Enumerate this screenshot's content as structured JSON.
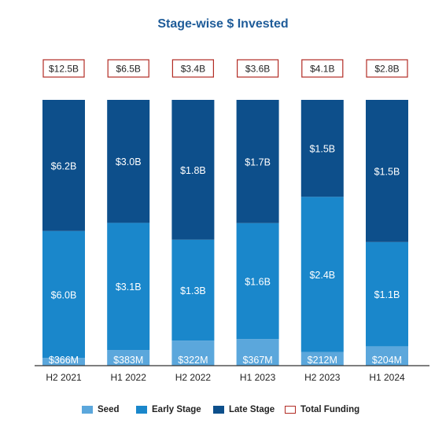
{
  "chart_data": {
    "type": "bar",
    "stacked": true,
    "title": "Stage-wise $ Invested",
    "categories": [
      "H2 2021",
      "H1 2022",
      "H2 2022",
      "H1 2023",
      "H2 2023",
      "H1 2024"
    ],
    "series": [
      {
        "name": "Seed",
        "values": [
          0.366,
          0.383,
          0.322,
          0.367,
          0.212,
          0.204
        ],
        "labels": [
          "$366M",
          "$383M",
          "$322M",
          "$367M",
          "$212M",
          "$204M"
        ]
      },
      {
        "name": "Early Stage",
        "values": [
          6.0,
          3.1,
          1.3,
          1.6,
          2.4,
          1.1
        ],
        "labels": [
          "$6.0B",
          "$3.1B",
          "$1.3B",
          "$1.6B",
          "$2.4B",
          "$1.1B"
        ]
      },
      {
        "name": "Late Stage",
        "values": [
          6.2,
          3.0,
          1.8,
          1.7,
          1.5,
          1.5
        ],
        "labels": [
          "$6.2B",
          "$3.0B",
          "$1.8B",
          "$1.7B",
          "$1.5B",
          "$1.5B"
        ]
      }
    ],
    "totals": {
      "name": "Total Funding",
      "values": [
        12.5,
        6.5,
        3.4,
        3.6,
        4.1,
        2.8
      ],
      "labels": [
        "$12.5B",
        "$6.5B",
        "$3.4B",
        "$3.6B",
        "$4.1B",
        "$2.8B"
      ]
    },
    "normalized_to_100_percent": true,
    "legend_position": "bottom",
    "grid": false
  },
  "colors": {
    "title": "#1F5C99",
    "seed": "#5BA7DC",
    "early": "#1A87CB",
    "late": "#0D4F8B",
    "total_border": "#B22B24",
    "bar_label": "#ffffff",
    "axis": "#333333",
    "tick_label": "#222222"
  }
}
